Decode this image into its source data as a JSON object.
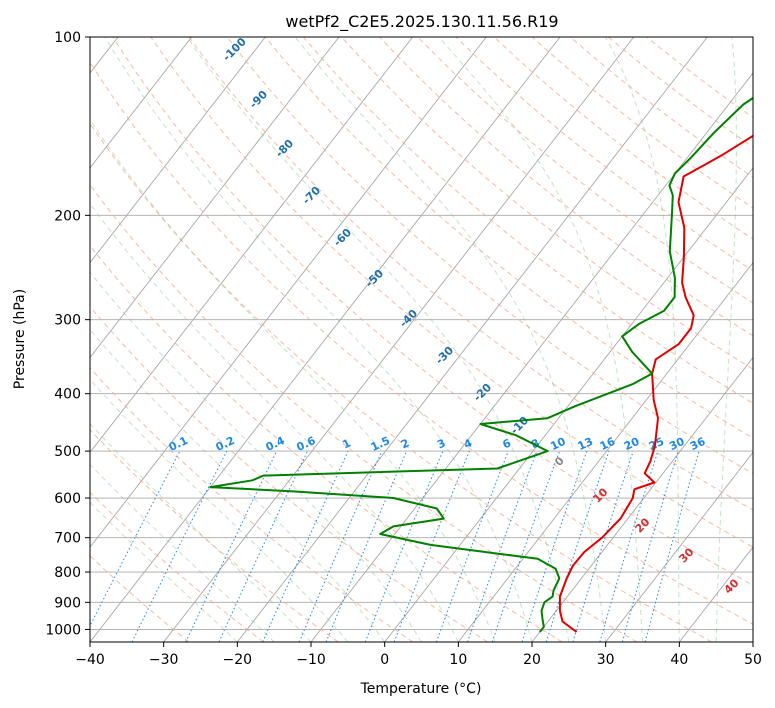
{
  "chart_data": {
    "type": "line",
    "title": "wetPf2_C2E5.2025.130.11.56.R19",
    "xlabel": "Temperature (°C)",
    "ylabel": "Pressure (hPa)",
    "xlim": [
      -40,
      50
    ],
    "ylim": [
      1050,
      100
    ],
    "y_scale": "log",
    "x_ticks": [
      -40,
      -30,
      -20,
      -10,
      0,
      10,
      20,
      30,
      40,
      50
    ],
    "x_tick_labels": [
      "−40",
      "−30",
      "−20",
      "−10",
      "0",
      "10",
      "20",
      "30",
      "40",
      "50"
    ],
    "y_ticks": [
      1000,
      900,
      800,
      700,
      600,
      500,
      400,
      300,
      200,
      100
    ],
    "y_tick_labels": [
      "1000",
      "900",
      "800",
      "700",
      "600",
      "500",
      "400",
      "300",
      "200",
      "100"
    ],
    "grid": true,
    "series": [
      {
        "role": "temperature",
        "color": "#e00000",
        "points": [
          [
            25,
            1010
          ],
          [
            22,
            970
          ],
          [
            20.5,
            930
          ],
          [
            19,
            880
          ],
          [
            18,
            820
          ],
          [
            17.5,
            780
          ],
          [
            17.6,
            740
          ],
          [
            18.5,
            700
          ],
          [
            19,
            650
          ],
          [
            18.5,
            600
          ],
          [
            17.8,
            580
          ],
          [
            19.8,
            565
          ],
          [
            17.5,
            545
          ],
          [
            17,
            520
          ],
          [
            16,
            490
          ],
          [
            13.5,
            440
          ],
          [
            11,
            410
          ],
          [
            8,
            370
          ],
          [
            7,
            350
          ],
          [
            8.5,
            330
          ],
          [
            8.5,
            310
          ],
          [
            7.5,
            295
          ],
          [
            4.5,
            275
          ],
          [
            2.5,
            260
          ],
          [
            0,
            235
          ],
          [
            -3,
            210
          ],
          [
            -6.5,
            190
          ],
          [
            -8.5,
            172
          ],
          [
            -7,
            165
          ],
          [
            -5.5,
            158
          ],
          [
            -4,
            150
          ],
          [
            -2,
            140
          ],
          [
            0.5,
            130
          ],
          [
            3,
            125
          ],
          [
            6,
            120
          ],
          [
            8,
            117
          ],
          [
            11,
            112
          ],
          [
            12,
            106
          ],
          [
            13,
            100
          ]
        ]
      },
      {
        "role": "dewpoint",
        "color": "#008000",
        "points": [
          [
            20,
            1010
          ],
          [
            20,
            990
          ],
          [
            19,
            960
          ],
          [
            18,
            930
          ],
          [
            17.5,
            900
          ],
          [
            18,
            880
          ],
          [
            17.5,
            860
          ],
          [
            17,
            820
          ],
          [
            15.5,
            790
          ],
          [
            12,
            760
          ],
          [
            -4,
            720
          ],
          [
            -12,
            690
          ],
          [
            -11,
            670
          ],
          [
            -5,
            650
          ],
          [
            -7,
            625
          ],
          [
            -14,
            600
          ],
          [
            -28,
            585
          ],
          [
            -40,
            575
          ],
          [
            -35,
            560
          ],
          [
            -34,
            550
          ],
          [
            -3,
            535
          ],
          [
            2,
            500
          ],
          [
            -4,
            470
          ],
          [
            -10,
            450
          ],
          [
            -1.5,
            440
          ],
          [
            1,
            420
          ],
          [
            6.5,
            385
          ],
          [
            8,
            370
          ],
          [
            3,
            340
          ],
          [
            0,
            320
          ],
          [
            1,
            305
          ],
          [
            3,
            290
          ],
          [
            3,
            275
          ],
          [
            1,
            255
          ],
          [
            -2.5,
            230
          ],
          [
            -6,
            200
          ],
          [
            -8,
            185
          ],
          [
            -9.5,
            178
          ],
          [
            -10,
            170
          ],
          [
            -9.5,
            160
          ],
          [
            -9,
            145
          ],
          [
            -8,
            130
          ],
          [
            -6,
            120
          ],
          [
            -3,
            113
          ],
          [
            3,
            106
          ],
          [
            9,
            100
          ]
        ]
      }
    ],
    "dry_adiabat_labels": [
      "-100",
      "-90",
      "-80",
      "-70",
      "-60",
      "-50",
      "-40",
      "-30",
      "-20",
      "-10"
    ],
    "moist_adiabat_labels": [
      "0",
      "10",
      "20",
      "30",
      "40"
    ],
    "mixing_ratio_labels": [
      "0.1",
      "0.2",
      "0.4",
      "0.6",
      "1",
      "1.5",
      "2",
      "3",
      "4",
      "6",
      "8",
      "10",
      "13",
      "16",
      "20",
      "25",
      "30",
      "36"
    ],
    "colors": {
      "isotherm": "#a8a8a8",
      "isobar": "#a8a8a8",
      "dry_adiabat": "#f4a98a",
      "moist_adiabat": "#7cc07c",
      "mixing_ratio": "#1e88e5",
      "theta_e": "#c8a882"
    }
  }
}
